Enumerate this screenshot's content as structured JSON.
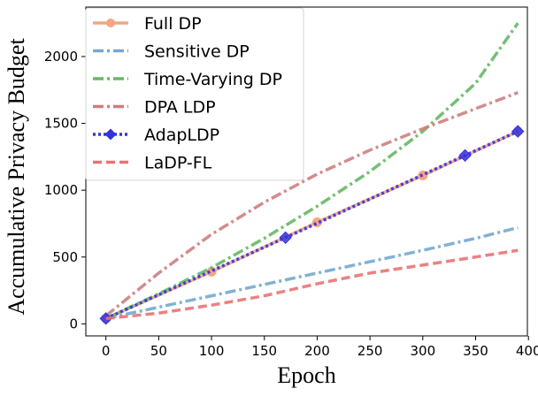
{
  "chart_data": {
    "type": "line",
    "title": "",
    "xlabel": "Epoch",
    "ylabel": "Accumulative Privacy Budget",
    "xlim": [
      -19,
      399
    ],
    "ylim": [
      -90,
      2370
    ],
    "xticks": [
      0,
      50,
      100,
      150,
      200,
      250,
      300,
      350,
      400
    ],
    "yticks": [
      0,
      500,
      1000,
      1500,
      2000
    ],
    "legend_position": "top-left",
    "series": [
      {
        "name": "Full DP",
        "color": "#f4a582",
        "dash": "solid",
        "marker": "circle",
        "x": [
          0,
          100,
          200,
          300,
          390
        ],
        "y": [
          40,
          390,
          760,
          1110,
          1440
        ]
      },
      {
        "name": "Sensitive DP",
        "color": "#74a9cf",
        "dash": "dashdot",
        "marker": "none",
        "x": [
          0,
          50,
          100,
          150,
          200,
          250,
          300,
          350,
          390
        ],
        "y": [
          40,
          125,
          210,
          295,
          380,
          465,
          550,
          640,
          720
        ]
      },
      {
        "name": "Time-Varying DP",
        "color": "#66b866",
        "dash": "dashdot",
        "marker": "none",
        "x": [
          0,
          50,
          100,
          150,
          200,
          250,
          300,
          350,
          390
        ],
        "y": [
          40,
          225,
          420,
          640,
          880,
          1140,
          1440,
          1800,
          2250
        ]
      },
      {
        "name": "DPA LDP",
        "color": "#cd7f7f",
        "dash": "dashdot",
        "marker": "none",
        "x": [
          0,
          50,
          100,
          150,
          200,
          250,
          300,
          350,
          390
        ],
        "y": [
          60,
          380,
          670,
          910,
          1120,
          1300,
          1460,
          1610,
          1730
        ]
      },
      {
        "name": "AdapLDP",
        "color": "#3333dd",
        "dash": "dotted",
        "marker": "diamond",
        "x": [
          0,
          170,
          340,
          390
        ],
        "y": [
          40,
          645,
          1260,
          1440
        ]
      },
      {
        "name": "LaDP-FL",
        "color": "#e87474",
        "dash": "dashed",
        "marker": "none",
        "x": [
          0,
          50,
          100,
          150,
          200,
          250,
          300,
          350,
          390
        ],
        "y": [
          40,
          80,
          140,
          210,
          300,
          380,
          440,
          500,
          550
        ]
      }
    ]
  }
}
